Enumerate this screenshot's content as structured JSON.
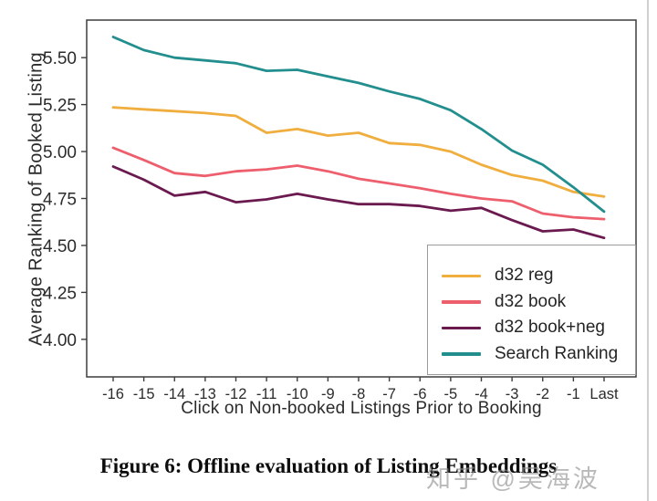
{
  "caption": {
    "text": "Figure 6: Offline evaluation of Listing Embeddings"
  },
  "watermark": {
    "text": "知乎 @吴海波"
  },
  "chart_data": {
    "type": "line",
    "title": "",
    "xlabel": "Click on Non-booked Listings Prior to Booking",
    "ylabel": "Average Ranking of Booked Listing",
    "categories": [
      "-16",
      "-15",
      "-14",
      "-13",
      "-12",
      "-11",
      "-10",
      "-9",
      "-8",
      "-7",
      "-6",
      "-5",
      "-4",
      "-3",
      "-2",
      "-1",
      "Last"
    ],
    "series": [
      {
        "name": "d32 reg",
        "color": "#F0AE3F",
        "values": [
          5.235,
          5.225,
          5.215,
          5.205,
          5.19,
          5.1,
          5.12,
          5.085,
          5.1,
          5.045,
          5.035,
          5.0,
          4.93,
          4.875,
          4.845,
          4.785,
          4.76
        ]
      },
      {
        "name": "d32 book",
        "color": "#EE5F6E",
        "values": [
          5.02,
          4.955,
          4.885,
          4.87,
          4.895,
          4.905,
          4.925,
          4.895,
          4.855,
          4.83,
          4.805,
          4.775,
          4.75,
          4.735,
          4.67,
          4.65,
          4.64
        ]
      },
      {
        "name": "d32 book+neg",
        "color": "#6B1A4F",
        "values": [
          4.92,
          4.85,
          4.765,
          4.785,
          4.73,
          4.745,
          4.775,
          4.745,
          4.72,
          4.72,
          4.71,
          4.685,
          4.7,
          4.635,
          4.575,
          4.585,
          4.54
        ]
      },
      {
        "name": "Search Ranking",
        "color": "#238E8E",
        "values": [
          5.61,
          5.54,
          5.5,
          5.485,
          5.47,
          5.43,
          5.435,
          5.4,
          5.365,
          5.32,
          5.28,
          5.22,
          5.12,
          5.005,
          4.93,
          4.81,
          4.68
        ]
      }
    ],
    "yticks": [
      4.0,
      4.25,
      4.5,
      4.75,
      5.0,
      5.25,
      5.5
    ],
    "ylim": [
      3.8,
      5.7
    ],
    "grid": false,
    "legend_position": "lower right",
    "axis_color": "#3d3d3d"
  }
}
